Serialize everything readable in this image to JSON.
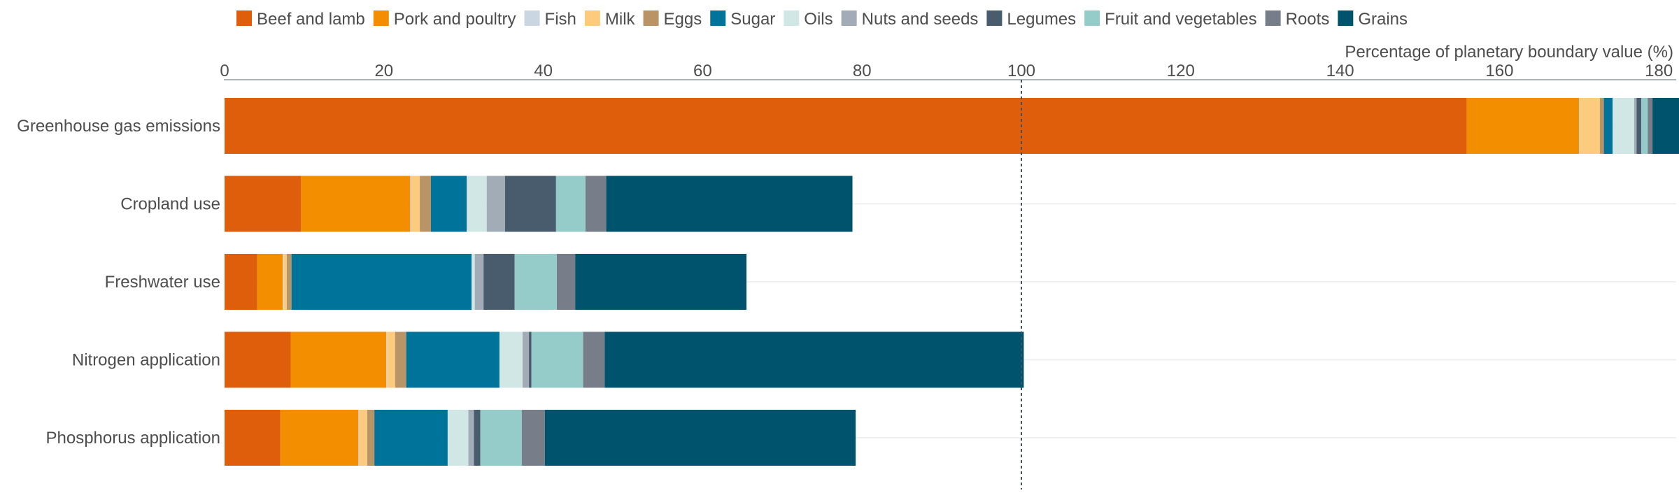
{
  "chart_data": {
    "type": "bar",
    "orientation": "horizontal",
    "stacked": true,
    "xlabel": "Percentage of planetary boundary value (%)",
    "xlim": [
      0,
      183
    ],
    "xticks": [
      0,
      20,
      40,
      60,
      80,
      100,
      120,
      140,
      160,
      180
    ],
    "reference_line": 100,
    "legend_position": "top",
    "categories": [
      "Greenhouse gas emissions",
      "Cropland use",
      "Freshwater use",
      "Nitrogen application",
      "Phosphorus application"
    ],
    "series": [
      {
        "name": "Beef and lamb",
        "color": "#DE5E0B",
        "values": [
          155.9,
          9.6,
          4.1,
          8.3,
          7.0
        ]
      },
      {
        "name": "Pork and poultry",
        "color": "#F28E00",
        "values": [
          14.1,
          13.7,
          3.2,
          12.0,
          9.8
        ]
      },
      {
        "name": "Fish",
        "color": "#CAD6E2",
        "values": [
          0.1,
          0.1,
          0.1,
          0.1,
          0.1
        ]
      },
      {
        "name": "Milk",
        "color": "#FCCB7E",
        "values": [
          2.5,
          1.1,
          0.4,
          1.0,
          1.0
        ]
      },
      {
        "name": "Eggs",
        "color": "#B89466",
        "values": [
          0.5,
          1.4,
          0.6,
          1.4,
          0.9
        ]
      },
      {
        "name": "Sugar",
        "color": "#00739A",
        "values": [
          1.1,
          4.5,
          22.6,
          11.7,
          9.2
        ]
      },
      {
        "name": "Oils",
        "color": "#D1E7E6",
        "values": [
          2.7,
          2.5,
          0.4,
          2.9,
          2.6
        ]
      },
      {
        "name": "Nuts and seeds",
        "color": "#A2ACB6",
        "values": [
          0.3,
          2.3,
          1.1,
          0.8,
          0.7
        ]
      },
      {
        "name": "Legumes",
        "color": "#485C6E",
        "values": [
          0.6,
          6.4,
          3.9,
          0.3,
          0.8
        ]
      },
      {
        "name": "Fruit and vegetables",
        "color": "#95CBC8",
        "values": [
          0.8,
          3.7,
          5.3,
          6.5,
          5.2
        ]
      },
      {
        "name": "Roots",
        "color": "#787E89",
        "values": [
          0.6,
          2.6,
          2.3,
          2.7,
          2.9
        ]
      },
      {
        "name": "Grains",
        "color": "#00536C",
        "values": [
          4.0,
          30.9,
          21.5,
          52.6,
          39.0
        ]
      }
    ]
  }
}
